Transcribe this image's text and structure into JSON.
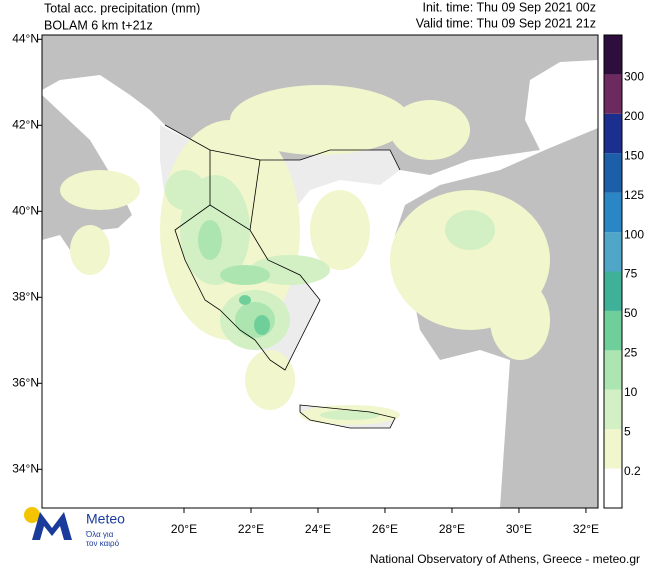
{
  "header": {
    "title": "Total acc. precipitation (mm)",
    "model": "BOLAM 6 km t+21z",
    "init_time": "Init. time: Thu 09 Sep 2021 00z",
    "valid_time": "Valid time: Thu 09 Sep 2021 21z"
  },
  "map": {
    "lon_range": [
      15.76,
      32.36
    ],
    "lat_range": [
      33.1,
      44.1
    ],
    "lon_ticks": [
      {
        "value": 20,
        "label": "20°E"
      },
      {
        "value": 22,
        "label": "22°E"
      },
      {
        "value": 24,
        "label": "24°E"
      },
      {
        "value": 26,
        "label": "26°E"
      },
      {
        "value": 28,
        "label": "28°E"
      },
      {
        "value": 30,
        "label": "30°E"
      },
      {
        "value": 32,
        "label": "32°E"
      }
    ],
    "lat_ticks": [
      {
        "value": 34,
        "label": "34°N"
      },
      {
        "value": 36,
        "label": "36°N"
      },
      {
        "value": 38,
        "label": "38°N"
      },
      {
        "value": 40,
        "label": "40°N"
      },
      {
        "value": 42,
        "label": "42°N"
      },
      {
        "value": 44,
        "label": "44°N"
      }
    ]
  },
  "colorbar": {
    "levels": [
      0.2,
      5,
      10,
      25,
      50,
      75,
      100,
      125,
      150,
      200,
      300
    ],
    "colors": [
      "#ffffff",
      "#f1f6cc",
      "#d2f0c4",
      "#ace5b0",
      "#6fcf9a",
      "#3fb198",
      "#4fa6c8",
      "#2a86c4",
      "#1d5ea8",
      "#1a2f8e",
      "#6d2a5f",
      "#2e0e3c"
    ]
  },
  "logo": {
    "name": "Meteo",
    "slogan_line1": "Όλα για",
    "slogan_line2": "τον καιρό"
  },
  "footer": "National Observatory of Athens, Greece - meteo.gr"
}
